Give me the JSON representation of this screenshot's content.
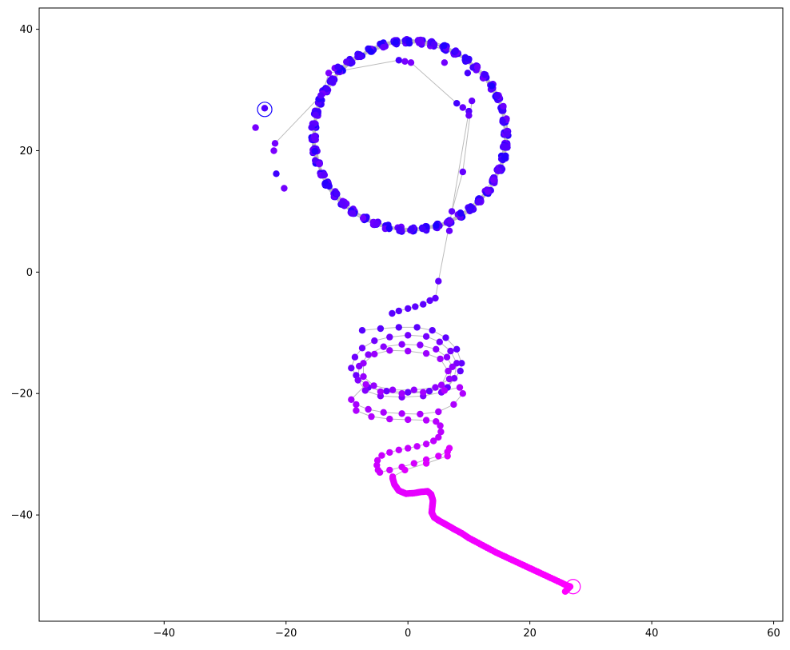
{
  "chart_data": {
    "type": "scatter",
    "title": "",
    "xlabel": "",
    "ylabel": "",
    "xlim": [
      -60.5,
      61.5
    ],
    "ylim": [
      -57.5,
      43.5
    ],
    "xticks": [
      -40,
      -20,
      0,
      20,
      40,
      60
    ],
    "xtick_labels": [
      "−40",
      "−20",
      "0",
      "20",
      "40",
      "60"
    ],
    "yticks": [
      -40,
      -20,
      0,
      20,
      40
    ],
    "ytick_labels": [
      "−40",
      "−20",
      "0",
      "20",
      "40"
    ],
    "grid": false,
    "legend": "none",
    "colors": {
      "start": "#1400ff",
      "mid": "#9c00ff",
      "end": "#ff00ff",
      "path": "#bbbbbb"
    },
    "point_color_scale": "blue at start of path → purple → magenta at end of path",
    "segments": [
      {
        "name": "",
        "phase": 0.25,
        "points": [
          [
            10.5,
            28.2
          ],
          [
            9.0,
            16.5
          ],
          [
            7.2,
            10.0
          ],
          [
            5.0,
            -1.5
          ],
          [
            4.5,
            -4.3
          ],
          [
            3.6,
            -4.7
          ],
          [
            2.5,
            -5.3
          ],
          [
            1.2,
            -5.7
          ],
          [
            0.0,
            -6.0
          ],
          [
            -1.5,
            -6.4
          ],
          [
            -2.6,
            -6.8
          ]
        ]
      },
      {
        "name": "",
        "phase": 0.6,
        "points": [
          [
            -7.5,
            -9.6
          ],
          [
            -4.5,
            -9.3
          ],
          [
            -1.5,
            -9.1
          ],
          [
            1.5,
            -9.1
          ],
          [
            4.0,
            -9.6
          ],
          [
            6.2,
            -10.8
          ],
          [
            8.0,
            -12.7
          ],
          [
            8.8,
            -15.0
          ],
          [
            8.6,
            -16.3
          ],
          [
            6.5,
            -19.0
          ],
          [
            3.5,
            -19.6
          ],
          [
            0.0,
            -19.8
          ],
          [
            -3.5,
            -19.6
          ],
          [
            -6.5,
            -19.0
          ],
          [
            -8.5,
            -17.0
          ],
          [
            -9.3,
            -15.8
          ],
          [
            -8.7,
            -14.0
          ],
          [
            -7.5,
            -12.5
          ],
          [
            -5.5,
            -11.3
          ],
          [
            -3.0,
            -10.7
          ],
          [
            0.0,
            -10.4
          ],
          [
            3.0,
            -10.6
          ],
          [
            5.2,
            -11.5
          ],
          [
            7.0,
            -13.0
          ],
          [
            8.0,
            -15.0
          ],
          [
            7.6,
            -17.5
          ],
          [
            5.5,
            -19.8
          ],
          [
            2.5,
            -20.4
          ],
          [
            -1.0,
            -20.6
          ],
          [
            -4.5,
            -20.4
          ],
          [
            -7.0,
            -19.5
          ],
          [
            -8.2,
            -17.8
          ],
          [
            -8.0,
            -15.5
          ],
          [
            -6.5,
            -13.6
          ],
          [
            -4.0,
            -12.3
          ],
          [
            -1.0,
            -11.9
          ],
          [
            2.0,
            -12.0
          ],
          [
            4.6,
            -12.7
          ],
          [
            6.4,
            -14.0
          ],
          [
            7.3,
            -15.6
          ],
          [
            6.8,
            -17.6
          ],
          [
            4.5,
            -19.0
          ],
          [
            1.0,
            -19.4
          ],
          [
            -2.5,
            -19.4
          ],
          [
            -5.6,
            -18.7
          ],
          [
            -7.3,
            -17.2
          ],
          [
            -7.3,
            -15.0
          ],
          [
            -5.5,
            -13.5
          ],
          [
            -3.0,
            -12.9
          ],
          [
            0.0,
            -13.0
          ],
          [
            3.0,
            -13.4
          ],
          [
            5.3,
            -14.3
          ],
          [
            6.6,
            -16.3
          ],
          [
            5.5,
            -18.6
          ],
          [
            2.5,
            -19.8
          ],
          [
            -1.0,
            -20.0
          ],
          [
            -4.5,
            -19.7
          ],
          [
            -6.9,
            -18.5
          ],
          [
            -9.3,
            -21.0
          ],
          [
            -8.5,
            -21.8
          ],
          [
            -6.5,
            -22.6
          ],
          [
            -4.0,
            -23.1
          ],
          [
            -1.0,
            -23.3
          ],
          [
            2.0,
            -23.4
          ],
          [
            5.0,
            -23.0
          ],
          [
            7.5,
            -21.8
          ],
          [
            9.0,
            -20.0
          ],
          [
            8.5,
            -19.0
          ],
          [
            6.0,
            -19.5
          ]
        ]
      },
      {
        "name": "",
        "phase": 0.85,
        "points": [
          [
            -8.5,
            -22.8
          ],
          [
            -6.0,
            -23.8
          ],
          [
            -3.0,
            -24.2
          ],
          [
            0.0,
            -24.3
          ],
          [
            3.0,
            -24.4
          ],
          [
            4.6,
            -24.6
          ],
          [
            5.3,
            -25.3
          ],
          [
            5.4,
            -26.3
          ],
          [
            5.0,
            -27.2
          ],
          [
            4.2,
            -27.8
          ],
          [
            3.0,
            -28.3
          ],
          [
            1.5,
            -28.7
          ],
          [
            0.0,
            -29.0
          ],
          [
            -1.5,
            -29.3
          ],
          [
            -3.0,
            -29.7
          ],
          [
            -4.3,
            -30.2
          ],
          [
            -5.0,
            -31.0
          ],
          [
            -5.1,
            -31.8
          ],
          [
            -4.9,
            -32.6
          ],
          [
            -4.6,
            -33.0
          ],
          [
            -3.0,
            -32.6
          ],
          [
            -1.0,
            -32.1
          ],
          [
            1.0,
            -31.5
          ],
          [
            3.0,
            -30.9
          ],
          [
            5.0,
            -30.3
          ],
          [
            6.5,
            -29.6
          ],
          [
            6.8,
            -29.0
          ],
          [
            6.5,
            -30.3
          ],
          [
            3.0,
            -31.5
          ],
          [
            -0.5,
            -32.6
          ],
          [
            -2.5,
            -33.7
          ]
        ]
      },
      {
        "name": "",
        "phase": 1.0,
        "points": [
          [
            -2.5,
            -34.0
          ],
          [
            -2.2,
            -35.0
          ],
          [
            -1.5,
            -36.0
          ],
          [
            -0.3,
            -36.5
          ],
          [
            1.0,
            -36.4
          ],
          [
            2.2,
            -36.2
          ],
          [
            3.2,
            -36.1
          ],
          [
            3.8,
            -36.6
          ],
          [
            4.1,
            -37.6
          ],
          [
            4.0,
            -38.6
          ],
          [
            3.9,
            -39.6
          ],
          [
            4.3,
            -40.4
          ],
          [
            5.2,
            -41.0
          ],
          [
            6.3,
            -41.6
          ],
          [
            7.5,
            -42.3
          ],
          [
            8.8,
            -43.0
          ],
          [
            10.0,
            -43.8
          ],
          [
            11.5,
            -44.6
          ],
          [
            13.0,
            -45.4
          ],
          [
            14.5,
            -46.2
          ],
          [
            16.0,
            -46.9
          ],
          [
            17.5,
            -47.6
          ],
          [
            19.0,
            -48.3
          ],
          [
            20.5,
            -49.0
          ],
          [
            22.0,
            -49.7
          ],
          [
            23.5,
            -50.4
          ],
          [
            25.0,
            -51.1
          ],
          [
            26.0,
            -51.6
          ],
          [
            26.6,
            -51.8
          ],
          [
            25.8,
            -52.6
          ]
        ]
      }
    ],
    "ring": {
      "center": [
        0.3,
        22.5
      ],
      "rx": 15.8,
      "ry": 15.5,
      "loops": 12,
      "points_per_loop": 48,
      "extra_points": [
        [
          -25.0,
          23.8
        ],
        [
          -23.5,
          27.0
        ],
        [
          -21.8,
          21.2
        ],
        [
          -22.0,
          20.0
        ],
        [
          -21.6,
          16.2
        ],
        [
          -20.3,
          13.8
        ],
        [
          -14.0,
          29.4
        ],
        [
          -14.3,
          29.1
        ],
        [
          -13.0,
          32.8
        ],
        [
          -12.0,
          33.6
        ],
        [
          -11.5,
          33.8
        ],
        [
          -1.5,
          34.9
        ],
        [
          -0.5,
          34.7
        ],
        [
          0.5,
          34.5
        ],
        [
          8.0,
          27.8
        ],
        [
          10.0,
          26.5
        ],
        [
          10.0,
          25.8
        ],
        [
          9.0,
          27.1
        ],
        [
          6.8,
          6.8
        ],
        [
          6.0,
          34.5
        ],
        [
          9.8,
          32.8
        ]
      ]
    },
    "markers": {
      "start": [
        -23.5,
        26.8
      ],
      "end": [
        27.1,
        -51.8
      ]
    }
  }
}
